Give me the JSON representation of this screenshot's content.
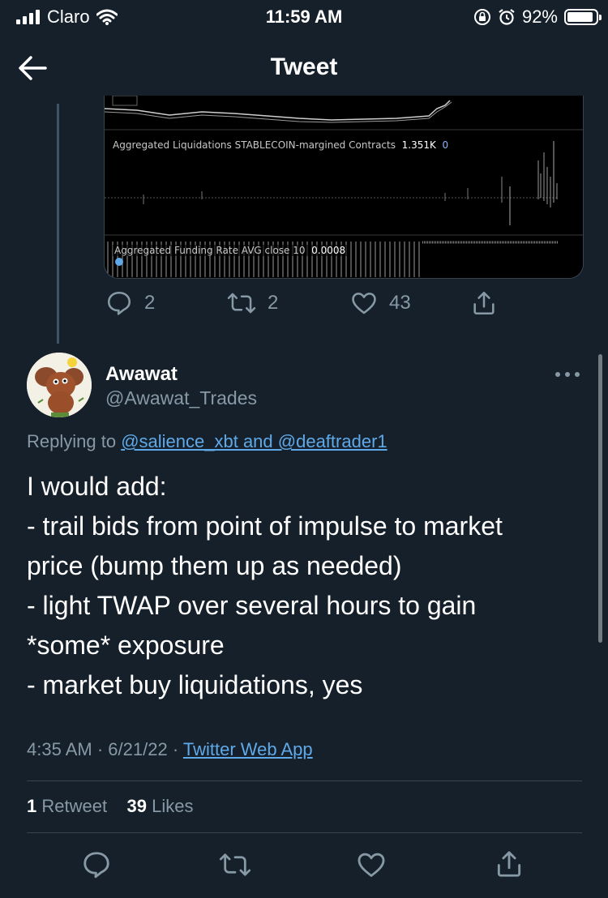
{
  "status_bar": {
    "carrier": "Claro",
    "time": "11:59 AM",
    "battery": "92%",
    "battery_level": 0.92
  },
  "nav": {
    "title": "Tweet"
  },
  "quoted_chart": {
    "liquidations_label": "Aggregated Liquidations STABLECOIN-margined Contracts",
    "liquidations_value": "1.351K",
    "liquidations_value2": "0",
    "funding_label": "Aggregated Funding Rate AVG close 10",
    "funding_value": "0.0008"
  },
  "parent_actions": {
    "replies": "2",
    "retweets": "2",
    "likes": "43"
  },
  "tweet": {
    "name": "Awawat",
    "handle": "@Awawat_Trades",
    "replying_prefix": "Replying to",
    "replying_to": "@salience_xbt and @deaftrader1",
    "lines": [
      "I would add:",
      "- trail bids from point of impulse to market",
      "price (bump them up as needed)",
      "- light TWAP over several hours to gain",
      "*some* exposure",
      "- market buy liquidations, yes"
    ],
    "time": "4:35 AM",
    "date": "6/21/22",
    "source": "Twitter Web App",
    "retweets_count": "1",
    "retweets_label": "Retweet",
    "likes_count": "39",
    "likes_label": "Likes"
  },
  "icons": {
    "reply": "reply-icon",
    "retweet": "retweet-icon",
    "like": "heart-icon",
    "share": "share-icon"
  },
  "colors": {
    "background": "#15202b",
    "link": "#5fa9e8",
    "secondary_text": "#8899a6"
  }
}
